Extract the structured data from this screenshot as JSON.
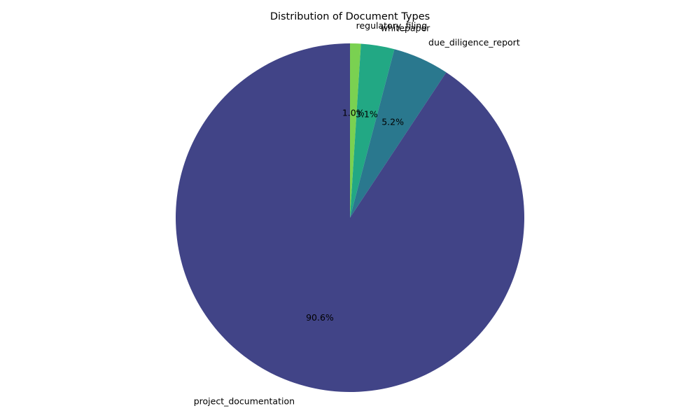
{
  "chart_data": {
    "type": "pie",
    "title": "Distribution of Document Types",
    "start_angle_deg": 90,
    "direction": "clockwise",
    "slices": [
      {
        "label": "regulatory_filing",
        "value": 1.0,
        "pct_label": "1.0%",
        "color": "#7ad151"
      },
      {
        "label": "whitepaper",
        "value": 3.1,
        "pct_label": "3.1%",
        "color": "#22a884"
      },
      {
        "label": "due_diligence_report",
        "value": 5.2,
        "pct_label": "5.2%",
        "color": "#2a788e"
      },
      {
        "label": "project_documentation",
        "value": 90.6,
        "pct_label": "90.6%",
        "color": "#414487"
      }
    ]
  }
}
